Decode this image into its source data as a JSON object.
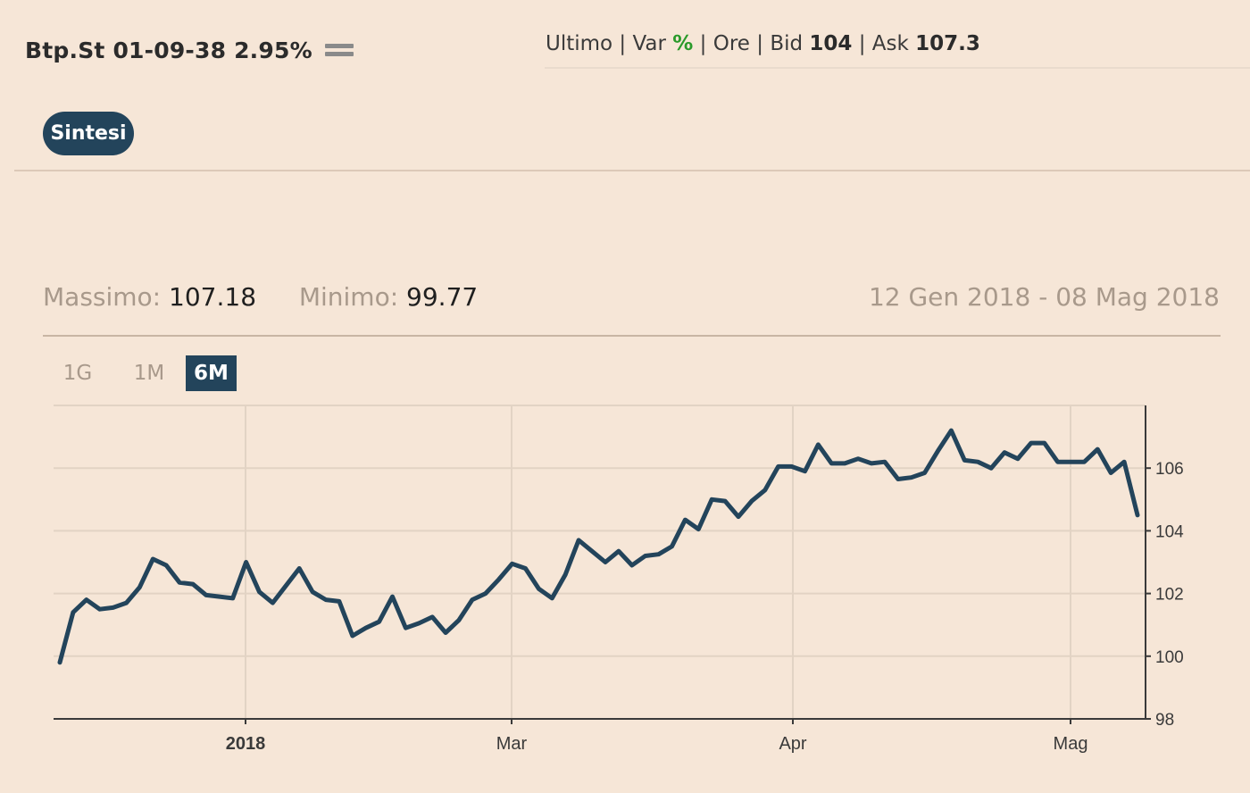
{
  "header": {
    "title": "Btp.St 01-09-38 2.95%",
    "menu_icon": "hamburger-icon"
  },
  "quote": {
    "ultimo_label": "Ultimo",
    "var_label": "Var",
    "pct_symbol": "%",
    "ore_label": "Ore",
    "bid_label": "Bid",
    "bid_value": "104",
    "ask_label": "Ask",
    "ask_value": "107.3",
    "separator": "|",
    "pct_color": "#2a9a2a"
  },
  "tabs": [
    {
      "label": "Sintesi",
      "active": true
    }
  ],
  "stats": {
    "max_label": "Massimo:",
    "max_value": "107.18",
    "min_label": "Minimo:",
    "min_value": "99.77",
    "date_range": "12 Gen 2018 - 08 Mag 2018"
  },
  "ranges": [
    {
      "label": "1G",
      "active": false
    },
    {
      "label": "1M",
      "active": false
    },
    {
      "label": "6M",
      "active": true
    }
  ],
  "colors": {
    "background": "#f6e6d7",
    "accent": "#23445b",
    "line": "#23445b",
    "grid": "#e2d3c4"
  },
  "chart_data": {
    "type": "line",
    "title": "",
    "xlabel": "",
    "ylabel": "",
    "ylim": [
      98,
      108
    ],
    "yticks": [
      98,
      100,
      102,
      104,
      106
    ],
    "y_axis_position": "right",
    "grid": true,
    "x_axis_labels": [
      "2018",
      "Mar",
      "Apr",
      "Mag"
    ],
    "series": [
      {
        "values": [
          99.8,
          101.4,
          101.8,
          101.5,
          101.55,
          101.7,
          102.2,
          103.1,
          102.9,
          102.35,
          102.3,
          101.95,
          101.9,
          101.85,
          103.0,
          102.05,
          101.7,
          102.25,
          102.8,
          102.05,
          101.8,
          101.75,
          100.65,
          100.9,
          101.1,
          101.9,
          100.9,
          101.05,
          101.25,
          100.75,
          101.15,
          101.8,
          102.0,
          102.45,
          102.95,
          102.8,
          102.15,
          101.85,
          102.6,
          103.7,
          103.35,
          103.0,
          103.35,
          102.9,
          103.2,
          103.25,
          103.5,
          104.35,
          104.05,
          105.0,
          104.95,
          104.45,
          104.95,
          105.3,
          106.05,
          106.05,
          105.9,
          106.75,
          106.15,
          106.15,
          106.3,
          106.15,
          106.2,
          105.65,
          105.7,
          105.85,
          106.55,
          107.2,
          106.25,
          106.2,
          106.0,
          106.5,
          106.3,
          106.8,
          106.8,
          106.2,
          106.2,
          106.2,
          106.6,
          105.85,
          106.2,
          104.5
        ]
      }
    ]
  }
}
